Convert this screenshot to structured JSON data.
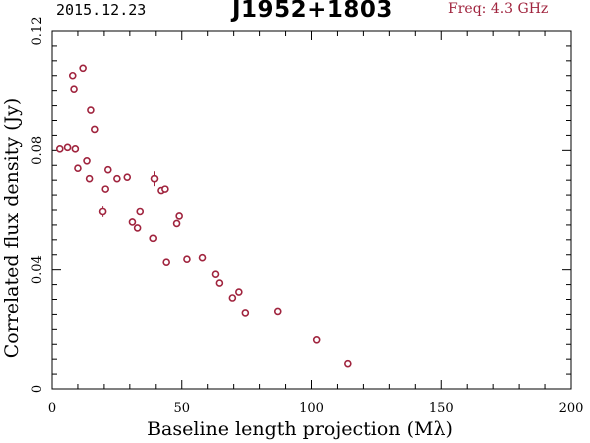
{
  "header": {
    "date": "2015.12.23",
    "source": "J1952+1803",
    "freq": "Freq: 4.3 GHz"
  },
  "colors": {
    "accent": "#a0243e"
  },
  "chart_data": {
    "type": "scatter",
    "title": "J1952+1803",
    "xlabel": "Baseline length projection (Mλ)",
    "ylabel": "Correlated flux density (Jy)",
    "xlim": [
      0,
      200
    ],
    "ylim": [
      0,
      0.12
    ],
    "xticks": [
      0,
      50,
      100,
      150,
      200
    ],
    "yticks": [
      0,
      0.04,
      0.08,
      0.12
    ],
    "xtick_labels": [
      "0",
      "50",
      "100",
      "150",
      "200"
    ],
    "ytick_labels": [
      "0",
      "0.04",
      "0.08",
      "0.12"
    ],
    "grid": false,
    "series": [
      {
        "x": [
          3,
          6,
          8,
          8.5,
          9,
          10,
          12,
          13.5,
          14.5,
          15,
          16.5,
          19.5,
          20.5,
          21.5,
          25,
          29,
          31,
          33,
          34,
          39,
          39.5,
          42,
          43.5,
          44,
          48,
          49,
          52,
          58,
          63,
          64.5,
          69.5,
          72,
          74.5,
          87,
          102,
          114
        ],
        "y": [
          0.0805,
          0.081,
          0.105,
          0.1005,
          0.0805,
          0.074,
          0.1075,
          0.0765,
          0.0705,
          0.0935,
          0.087,
          0.0595,
          0.067,
          0.0735,
          0.0705,
          0.071,
          0.056,
          0.054,
          0.0595,
          0.0505,
          0.0705,
          0.0665,
          0.067,
          0.0425,
          0.0555,
          0.058,
          0.0435,
          0.044,
          0.0385,
          0.0355,
          0.0305,
          0.0325,
          0.0255,
          0.026,
          0.0165,
          0.0085
        ],
        "yerr": [
          0.0008,
          0.0008,
          0.0008,
          0.0008,
          0.0008,
          0.0008,
          0.0008,
          0.0008,
          0.0012,
          0.0008,
          0.0008,
          0.0018,
          0.0012,
          0.0008,
          0.0008,
          0.0008,
          0.0012,
          0.0008,
          0.0008,
          0.0008,
          0.0025,
          0.0008,
          0.0012,
          0.0008,
          0.0012,
          0.0012,
          0.0008,
          0.0008,
          0.0008,
          0.0008,
          0.0008,
          0.0008,
          0.0008,
          0.0008,
          0.0008,
          0.0008
        ]
      }
    ]
  }
}
